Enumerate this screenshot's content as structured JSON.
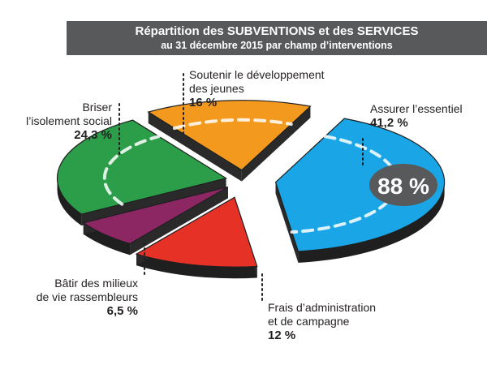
{
  "header": {
    "title": "Répartition des SUBVENTIONS et des SERVICES",
    "subtitle": "au 31 décembre 2015 par champ d’interventions"
  },
  "chart_data": {
    "type": "pie",
    "slices": [
      {
        "label_lines": [
          "Assurer l’essentiel"
        ],
        "value": 41.2,
        "value_text": "41,2 %",
        "color": "#1aa6e6",
        "side": "#0e7db3"
      },
      {
        "label_lines": [
          "Frais d’administration",
          "et de campagne"
        ],
        "value": 12,
        "value_text": "12 %",
        "color": "#e63127",
        "side": "#a8231b"
      },
      {
        "label_lines": [
          "Bâtir des milieux",
          "de vie rassembleurs"
        ],
        "value": 6.5,
        "value_text": "6,5 %",
        "color": "#8c2764",
        "side": "#5e1a43"
      },
      {
        "label_lines": [
          "Briser",
          "l’isolement social"
        ],
        "value": 24.3,
        "value_text": "24,3 %",
        "color": "#2c9e49",
        "side": "#1d6e32"
      },
      {
        "label_lines": [
          "Soutenir le développement",
          "des jeunes"
        ],
        "value": 16,
        "value_text": "16 %",
        "color": "#f39a1e",
        "side": "#b8700f"
      }
    ],
    "annotation": "88 %",
    "annotation_color": "#58595b"
  }
}
